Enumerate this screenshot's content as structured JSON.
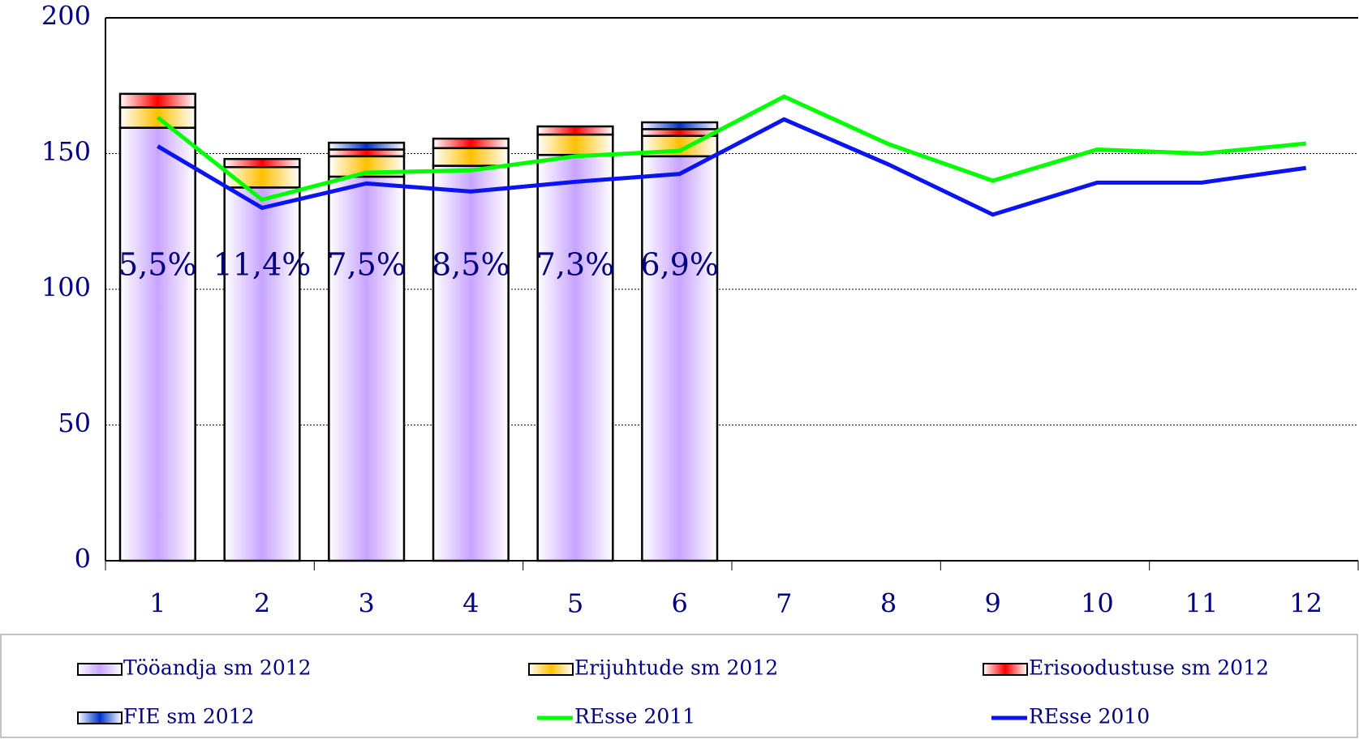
{
  "chart_data": {
    "type": "bar",
    "categories": [
      "1",
      "2",
      "3",
      "4",
      "5",
      "6",
      "7",
      "8",
      "9",
      "10",
      "11",
      "12"
    ],
    "series": [
      {
        "name": "Tööandja sm 2012",
        "type": "bar",
        "color": "#c8a4ff",
        "values": [
          159.5,
          137.5,
          141.5,
          145.5,
          149.5,
          149,
          null,
          null,
          null,
          null,
          null,
          null
        ]
      },
      {
        "name": "Erijuhtude sm 2012",
        "type": "bar",
        "color": "#ffc000",
        "values": [
          7.5,
          7.5,
          7.5,
          6.5,
          7.5,
          7.5,
          null,
          null,
          null,
          null,
          null,
          null
        ]
      },
      {
        "name": "Erisoodustuse sm 2012",
        "type": "bar",
        "color": "#ff0000",
        "values": [
          5,
          3,
          2.5,
          3.5,
          3,
          2.5,
          null,
          null,
          null,
          null,
          null,
          null
        ]
      },
      {
        "name": "FIE sm 2012",
        "type": "bar",
        "color": "#0033cc",
        "values": [
          0,
          0,
          2.5,
          0,
          0,
          2.5,
          null,
          null,
          null,
          null,
          null,
          null
        ]
      },
      {
        "name": "REsse 2011",
        "type": "line",
        "color": "#00ff00",
        "values": [
          163.3,
          133,
          143,
          143.8,
          149,
          151,
          171,
          153.5,
          140,
          151.5,
          150,
          153.7
        ]
      },
      {
        "name": "REsse 2010",
        "type": "line",
        "color": "#0a14f0",
        "values": [
          152.7,
          130,
          139,
          136,
          139.6,
          142.5,
          162.6,
          146,
          127.5,
          139.3,
          139.3,
          144.7
        ]
      }
    ],
    "annotations": [
      "5,5%",
      "11,4%",
      "7,5%",
      "8,5%",
      "7,3%",
      "6,9%"
    ],
    "ylim": [
      0,
      200
    ],
    "yticks": [
      0,
      50,
      100,
      150,
      200
    ],
    "grid": true,
    "legend": "bottom"
  }
}
